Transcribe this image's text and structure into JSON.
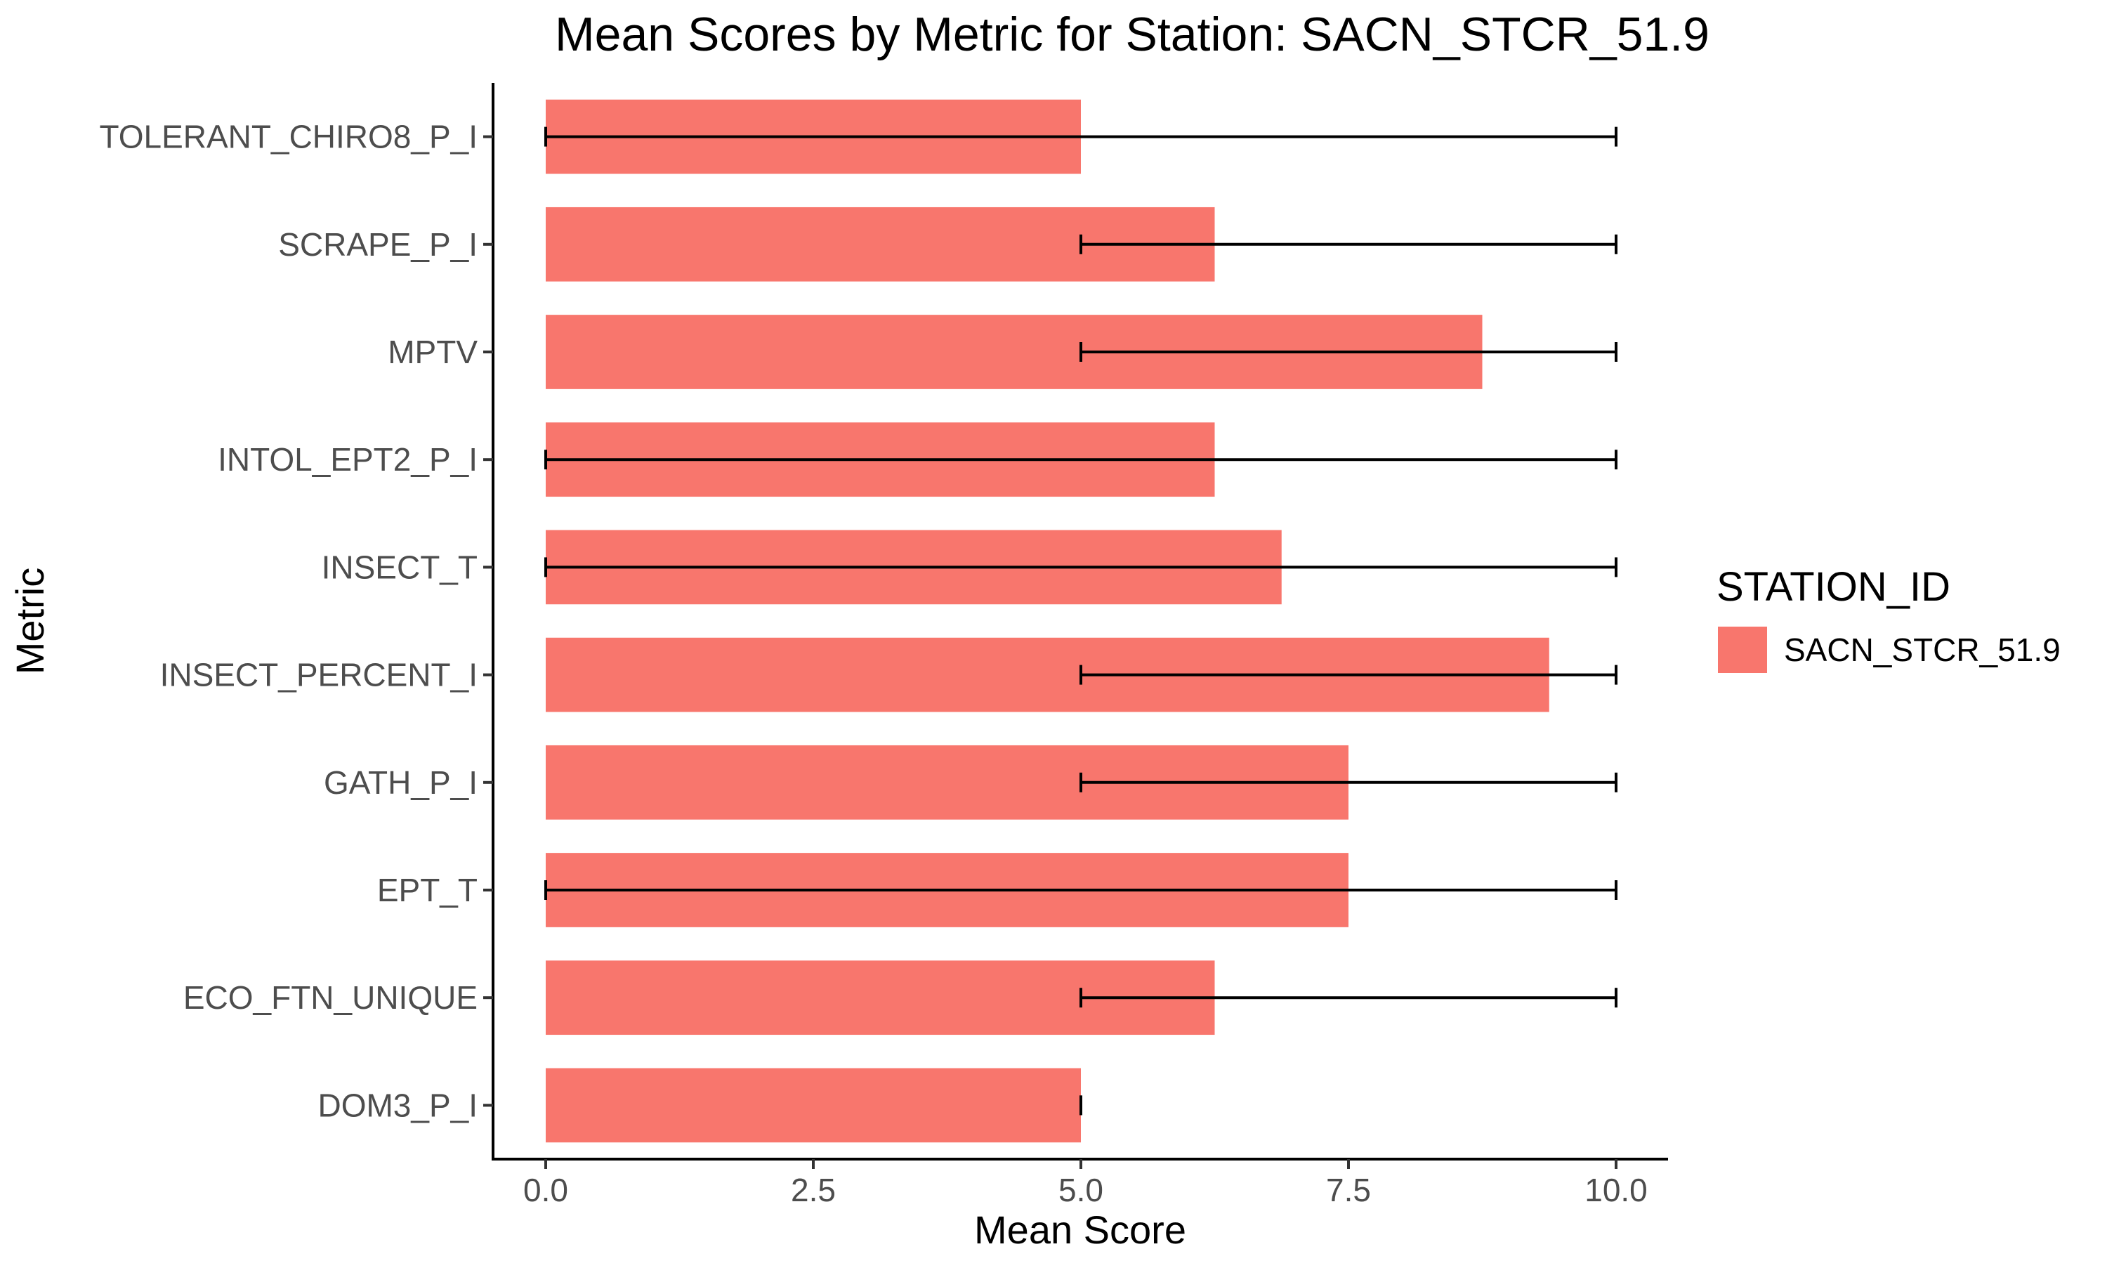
{
  "chart_data": {
    "type": "bar",
    "orientation": "horizontal",
    "title": "Mean Scores by Metric for Station: SACN_STCR_51.9",
    "xlabel": "Mean Score",
    "ylabel": "Metric",
    "xlim": [
      -0.5,
      10.5
    ],
    "x_ticks": [
      0,
      2.5,
      5,
      7.5,
      10
    ],
    "x_tick_labels": [
      "0.0",
      "2.5",
      "5.0",
      "7.5",
      "10.0"
    ],
    "grid": false,
    "legend": {
      "title": "STATION_ID",
      "position": "right",
      "entries": [
        "SACN_STCR_51.9"
      ]
    },
    "bar_color": "#F8766D",
    "categories": [
      "TOLERANT_CHIRO8_P_I",
      "SCRAPE_P_I",
      "MPTV",
      "INTOL_EPT2_P_I",
      "INSECT_T",
      "INSECT_PERCENT_I",
      "GATH_P_I",
      "EPT_T",
      "ECO_FTN_UNIQUE",
      "DOM3_P_I"
    ],
    "series": [
      {
        "name": "SACN_STCR_51.9",
        "values": [
          5.0,
          6.25,
          8.75,
          6.25,
          6.875,
          9.375,
          7.5,
          7.5,
          6.25,
          5.0
        ],
        "error_low": [
          0,
          5,
          5,
          0,
          0,
          5,
          5,
          0,
          5,
          5
        ],
        "error_high": [
          10,
          10,
          10,
          10,
          10,
          10,
          10,
          10,
          10,
          5
        ]
      }
    ]
  }
}
